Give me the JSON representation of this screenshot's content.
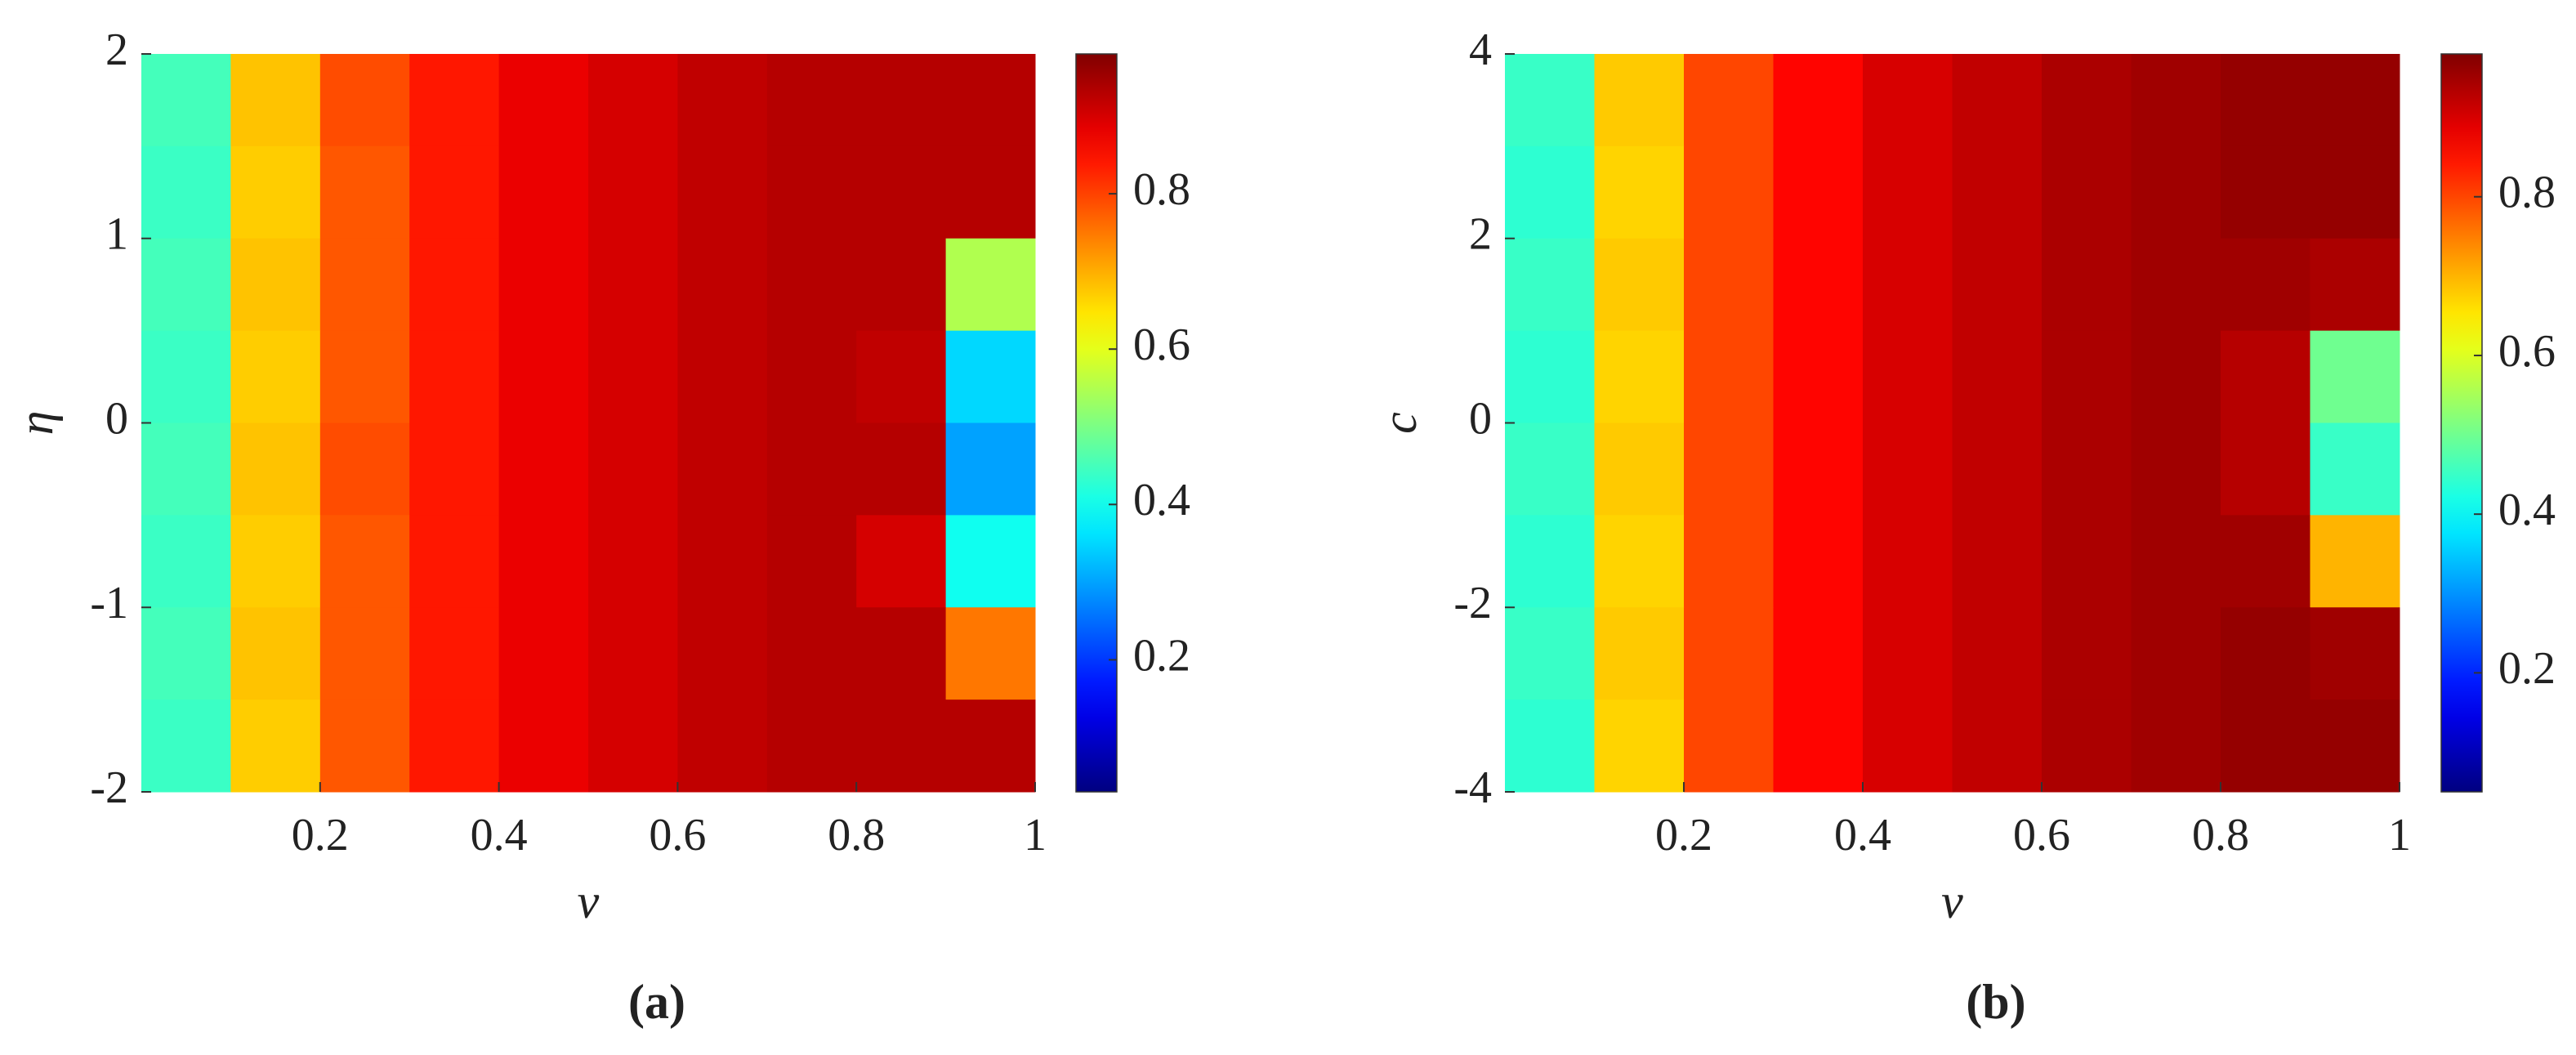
{
  "chart_data": [
    {
      "type": "heatmap",
      "colormap": "jet",
      "xlabel": "v",
      "ylabel": "η",
      "panel_label": "(a)",
      "xlim": [
        0,
        1
      ],
      "xticks": [
        0.2,
        0.4,
        0.6,
        0.8,
        1
      ],
      "ylim": [
        -2,
        2
      ],
      "yticks": [
        -2,
        -1,
        0,
        1,
        2
      ],
      "clim": [
        0.03,
        0.98
      ],
      "cticks": [
        0.2,
        0.4,
        0.6,
        0.8
      ],
      "x": [
        0.05,
        0.15,
        0.25,
        0.35,
        0.45,
        0.55,
        0.65,
        0.75,
        0.85,
        0.95
      ],
      "y": [
        1.75,
        1.25,
        0.75,
        0.25,
        -0.25,
        -0.75,
        -1.25,
        -1.75
      ],
      "z": [
        [
          0.45,
          0.68,
          0.79,
          0.84,
          0.88,
          0.9,
          0.92,
          0.93,
          0.93,
          0.93
        ],
        [
          0.44,
          0.67,
          0.78,
          0.84,
          0.88,
          0.9,
          0.92,
          0.93,
          0.93,
          0.93
        ],
        [
          0.45,
          0.68,
          0.78,
          0.84,
          0.88,
          0.9,
          0.92,
          0.93,
          0.93,
          0.55
        ],
        [
          0.44,
          0.67,
          0.78,
          0.84,
          0.88,
          0.9,
          0.92,
          0.93,
          0.92,
          0.35
        ],
        [
          0.45,
          0.68,
          0.79,
          0.84,
          0.88,
          0.9,
          0.92,
          0.93,
          0.93,
          0.3
        ],
        [
          0.44,
          0.67,
          0.78,
          0.84,
          0.88,
          0.9,
          0.92,
          0.93,
          0.9,
          0.4
        ],
        [
          0.45,
          0.68,
          0.78,
          0.84,
          0.88,
          0.9,
          0.92,
          0.93,
          0.93,
          0.75
        ],
        [
          0.44,
          0.67,
          0.78,
          0.84,
          0.88,
          0.9,
          0.92,
          0.93,
          0.93,
          0.93
        ]
      ]
    },
    {
      "type": "heatmap",
      "colormap": "jet",
      "xlabel": "v",
      "ylabel": "c",
      "panel_label": "(b)",
      "xlim": [
        0,
        1
      ],
      "xticks": [
        0.2,
        0.4,
        0.6,
        0.8,
        1
      ],
      "ylim": [
        -4,
        4
      ],
      "yticks": [
        -4,
        -2,
        0,
        2,
        4
      ],
      "clim": [
        0.05,
        0.98
      ],
      "cticks": [
        0.2,
        0.4,
        0.6,
        0.8
      ],
      "x": [
        0.05,
        0.15,
        0.25,
        0.35,
        0.45,
        0.55,
        0.65,
        0.75,
        0.85,
        0.95
      ],
      "y": [
        3.5,
        2.5,
        1.5,
        0.5,
        -0.5,
        -1.5,
        -2.5,
        -3.5
      ],
      "z": [
        [
          0.45,
          0.68,
          0.8,
          0.86,
          0.9,
          0.92,
          0.94,
          0.95,
          0.96,
          0.96
        ],
        [
          0.44,
          0.67,
          0.8,
          0.86,
          0.9,
          0.92,
          0.94,
          0.95,
          0.96,
          0.96
        ],
        [
          0.45,
          0.68,
          0.8,
          0.86,
          0.9,
          0.92,
          0.94,
          0.95,
          0.95,
          0.94
        ],
        [
          0.44,
          0.67,
          0.8,
          0.86,
          0.9,
          0.92,
          0.94,
          0.95,
          0.93,
          0.5
        ],
        [
          0.45,
          0.68,
          0.8,
          0.86,
          0.9,
          0.92,
          0.94,
          0.95,
          0.93,
          0.45
        ],
        [
          0.44,
          0.67,
          0.8,
          0.86,
          0.9,
          0.92,
          0.94,
          0.95,
          0.95,
          0.7
        ],
        [
          0.45,
          0.68,
          0.8,
          0.86,
          0.9,
          0.92,
          0.94,
          0.95,
          0.96,
          0.95
        ],
        [
          0.44,
          0.67,
          0.8,
          0.86,
          0.9,
          0.92,
          0.94,
          0.95,
          0.96,
          0.96
        ]
      ]
    }
  ]
}
